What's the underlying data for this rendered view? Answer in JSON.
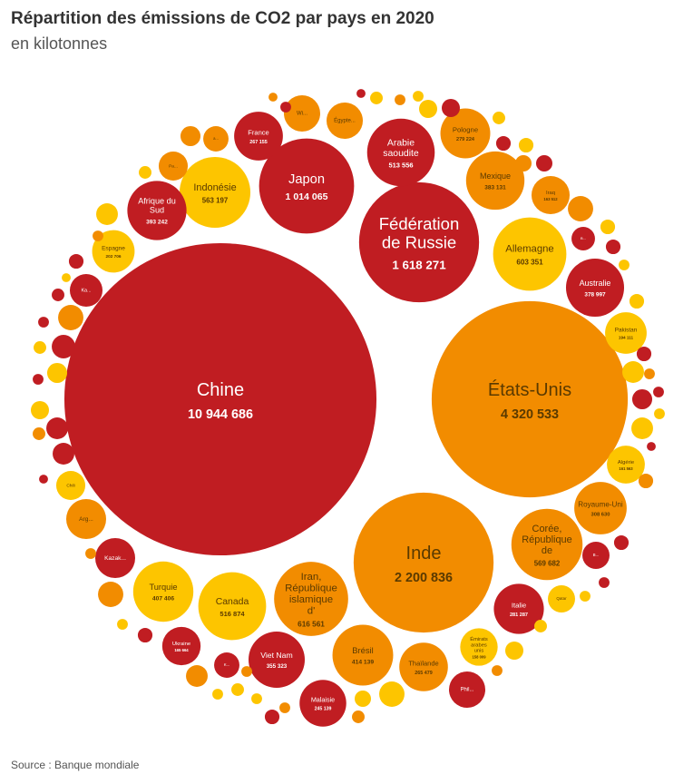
{
  "chart_data": {
    "type": "packed_bubble",
    "title": "Répartition des émissions de CO2 par pays en 2020",
    "subtitle": "en kilotonnes",
    "source": "Source : Banque mondiale",
    "points": [
      {
        "name": "Chine",
        "value": 10944686,
        "value_label": "10 944 686",
        "color": "#c01d22"
      },
      {
        "name": "États-Unis",
        "value": 4320533,
        "value_label": "4 320 533",
        "color": "#f28c00"
      },
      {
        "name": "Inde",
        "value": 2200836,
        "value_label": "2 200 836",
        "color": "#f28c00"
      },
      {
        "name": "Fédération de Russie",
        "value": 1618271,
        "value_label": "1 618 271",
        "color": "#c01d22"
      },
      {
        "name": "Japon",
        "value": 1014065,
        "value_label": "1 014 065",
        "color": "#c01d22"
      },
      {
        "name": "Arabie saoudite",
        "value": 513556,
        "value_label": "513 556",
        "color": "#c01d22"
      },
      {
        "name": "Indonésie",
        "value": 563197,
        "value_label": "563 197",
        "color": "#fdc500"
      },
      {
        "name": "Allemagne",
        "value": 603351,
        "value_label": "603 351",
        "color": "#fdc500"
      },
      {
        "name": "Mexique",
        "value": 383131,
        "value_label": "383 131",
        "color": "#f28c00"
      },
      {
        "name": "Afrique du Sud",
        "value": 393242,
        "value_label": "393 242",
        "color": "#c01d22"
      },
      {
        "name": "France",
        "value": 267155,
        "value_label": "267 155",
        "color": "#c01d22"
      },
      {
        "name": "Pologne",
        "value": 279224,
        "value_label": "279 224",
        "color": "#f28c00"
      },
      {
        "name": "Australie",
        "value": 378997,
        "value_label": "378 997",
        "color": "#c01d22"
      },
      {
        "name": "Pakistan",
        "value": 194111,
        "value_label": "194 111",
        "color": "#fdc500"
      },
      {
        "name": "Algérie",
        "value": 161563,
        "value_label": "161 563",
        "color": "#fdc500"
      },
      {
        "name": "Royaume-Uni",
        "value": 308630,
        "value_label": "308 630",
        "color": "#f28c00"
      },
      {
        "name": "Corée, République de",
        "value": 569682,
        "value_label": "569 682",
        "color": "#f28c00"
      },
      {
        "name": "Italie",
        "value": 281287,
        "value_label": "281 287",
        "color": "#c01d22"
      },
      {
        "name": "Émirats arabes unis",
        "value": 158009,
        "value_label": "158 009",
        "color": "#fdc500"
      },
      {
        "name": "Thaïlande",
        "value": 265479,
        "value_label": "265 479",
        "color": "#f28c00"
      },
      {
        "name": "Brésil",
        "value": 414139,
        "value_label": "414 139",
        "color": "#f28c00"
      },
      {
        "name": "Malaisie",
        "value": 245139,
        "value_label": "245 139",
        "color": "#c01d22"
      },
      {
        "name": "Viet Nam",
        "value": 355323,
        "value_label": "355 323",
        "color": "#c01d22"
      },
      {
        "name": "Canada",
        "value": 516874,
        "value_label": "516 874",
        "color": "#fdc500"
      },
      {
        "name": "Turquie",
        "value": 407406,
        "value_label": "407 406",
        "color": "#fdc500"
      },
      {
        "name": "Iran, République islamique d'",
        "value": 616561,
        "value_label": "616 561",
        "color": "#f28c00"
      },
      {
        "name": "Ukraine",
        "value": 165664,
        "value_label": "165 664",
        "color": "#c01d22"
      },
      {
        "name": "Espagne",
        "value": 202706,
        "value_label": "202 706",
        "color": "#fdc500"
      },
      {
        "name": "Iraq",
        "value": 163512,
        "value_label": "163 512",
        "color": "#f28c00"
      },
      {
        "name": "Wi...",
        "value": 148000,
        "color": "#f28c00"
      },
      {
        "name": "Égypte...",
        "value": 148000,
        "color": "#f28c00"
      },
      {
        "name": "Pa...",
        "value": 95000,
        "color": "#f28c00"
      },
      {
        "name": "a...",
        "value": 72000,
        "color": "#f28c00"
      },
      {
        "name": "Ka...",
        "value": 120000,
        "color": "#c01d22"
      },
      {
        "name": "Kazak...",
        "value": 179000,
        "color": "#c01d22"
      },
      {
        "name": "Arg...",
        "value": 179000,
        "color": "#f28c00"
      },
      {
        "name": "Chili",
        "value": 95000,
        "color": "#fdc500"
      },
      {
        "name": "Qatar",
        "value": 83000,
        "color": "#fdc500"
      },
      {
        "name": "B...",
        "value": 83000,
        "color": "#c01d22"
      },
      {
        "name": "Phil...",
        "value": 148000,
        "color": "#c01d22"
      },
      {
        "name": "K...",
        "value": 72000,
        "color": "#c01d22"
      },
      {
        "name": "B...",
        "value": 62000,
        "color": "#c01d22"
      },
      {
        "name": null,
        "value": 9000,
        "color": "#f28c00"
      },
      {
        "name": null,
        "value": 13000,
        "color": "#c01d22"
      },
      {
        "name": null,
        "value": 9000,
        "color": "#c01d22"
      },
      {
        "name": null,
        "value": 18000,
        "color": "#fdc500"
      },
      {
        "name": null,
        "value": 13000,
        "color": "#f28c00"
      },
      {
        "name": null,
        "value": 13000,
        "color": "#fdc500"
      },
      {
        "name": null,
        "value": 37000,
        "color": "#fdc500"
      },
      {
        "name": null,
        "value": 37000,
        "color": "#c01d22"
      },
      {
        "name": null,
        "value": 18000,
        "color": "#fdc500"
      },
      {
        "name": null,
        "value": 24000,
        "color": "#c01d22"
      },
      {
        "name": null,
        "value": 24000,
        "color": "#fdc500"
      },
      {
        "name": null,
        "value": 30000,
        "color": "#c01d22"
      },
      {
        "name": null,
        "value": 30000,
        "color": "#f28c00"
      },
      {
        "name": null,
        "value": 72000,
        "color": "#f28c00"
      },
      {
        "name": null,
        "value": 24000,
        "color": "#fdc500"
      },
      {
        "name": null,
        "value": 24000,
        "color": "#c01d22"
      },
      {
        "name": null,
        "value": 13000,
        "color": "#fdc500"
      },
      {
        "name": null,
        "value": 24000,
        "color": "#fdc500"
      },
      {
        "name": null,
        "value": 24000,
        "color": "#c01d22"
      },
      {
        "name": null,
        "value": 53000,
        "color": "#fdc500"
      },
      {
        "name": null,
        "value": 13000,
        "color": "#f28c00"
      },
      {
        "name": null,
        "value": 13000,
        "color": "#c01d22"
      },
      {
        "name": null,
        "value": 45000,
        "color": "#c01d22"
      },
      {
        "name": null,
        "value": 13000,
        "color": "#fdc500"
      },
      {
        "name": null,
        "value": 53000,
        "color": "#fdc500"
      },
      {
        "name": null,
        "value": 9000,
        "color": "#c01d22"
      },
      {
        "name": null,
        "value": 24000,
        "color": "#f28c00"
      },
      {
        "name": null,
        "value": 24000,
        "color": "#c01d22"
      },
      {
        "name": null,
        "value": 13000,
        "color": "#c01d22"
      },
      {
        "name": null,
        "value": 13000,
        "color": "#fdc500"
      },
      {
        "name": null,
        "value": 18000,
        "color": "#fdc500"
      },
      {
        "name": null,
        "value": 37000,
        "color": "#fdc500"
      },
      {
        "name": null,
        "value": 13000,
        "color": "#f28c00"
      },
      {
        "name": null,
        "value": 72000,
        "color": "#fdc500"
      },
      {
        "name": null,
        "value": 30000,
        "color": "#fdc500"
      },
      {
        "name": null,
        "value": 18000,
        "color": "#f28c00"
      },
      {
        "name": null,
        "value": 45000,
        "color": "#f28c00"
      },
      {
        "name": null,
        "value": 18000,
        "color": "#fdc500"
      },
      {
        "name": null,
        "value": 53000,
        "color": "#fdc500"
      },
      {
        "name": null,
        "value": 13000,
        "color": "#f28c00"
      },
      {
        "name": null,
        "value": 24000,
        "color": "#c01d22"
      },
      {
        "name": null,
        "value": 9000,
        "color": "#fdc500"
      },
      {
        "name": null,
        "value": 18000,
        "color": "#c01d22"
      },
      {
        "name": null,
        "value": 72000,
        "color": "#f28c00"
      },
      {
        "name": null,
        "value": 13000,
        "color": "#c01d22"
      },
      {
        "name": null,
        "value": 62000,
        "color": "#c01d22"
      },
      {
        "name": null,
        "value": 18000,
        "color": "#fdc500"
      },
      {
        "name": null,
        "value": 45000,
        "color": "#fdc500"
      },
      {
        "name": null,
        "value": 13000,
        "color": "#c01d22"
      },
      {
        "name": null,
        "value": 37000,
        "color": "#fdc500"
      },
      {
        "name": null,
        "value": 53000,
        "color": "#c01d22"
      },
      {
        "name": null,
        "value": 18000,
        "color": "#f28c00"
      },
      {
        "name": null,
        "value": 53000,
        "color": "#c01d22"
      },
      {
        "name": null,
        "value": 9000,
        "color": "#c01d22"
      },
      {
        "name": null,
        "value": 13000,
        "color": "#f28c00"
      },
      {
        "name": null,
        "value": 72000,
        "color": "#f28c00"
      },
      {
        "name": null,
        "value": 13000,
        "color": "#fdc500"
      },
      {
        "name": null,
        "value": 24000,
        "color": "#c01d22"
      },
      {
        "name": null,
        "value": 53000,
        "color": "#f28c00"
      },
      {
        "name": null,
        "value": 13000,
        "color": "#fdc500"
      },
      {
        "name": null,
        "value": 18000,
        "color": "#fdc500"
      },
      {
        "name": null,
        "value": 13000,
        "color": "#f28c00"
      },
      {
        "name": null,
        "value": 13000,
        "color": "#fdc500"
      },
      {
        "name": null,
        "value": 24000,
        "color": "#c01d22"
      },
      {
        "name": null,
        "value": 13000,
        "color": "#f28c00"
      }
    ]
  }
}
